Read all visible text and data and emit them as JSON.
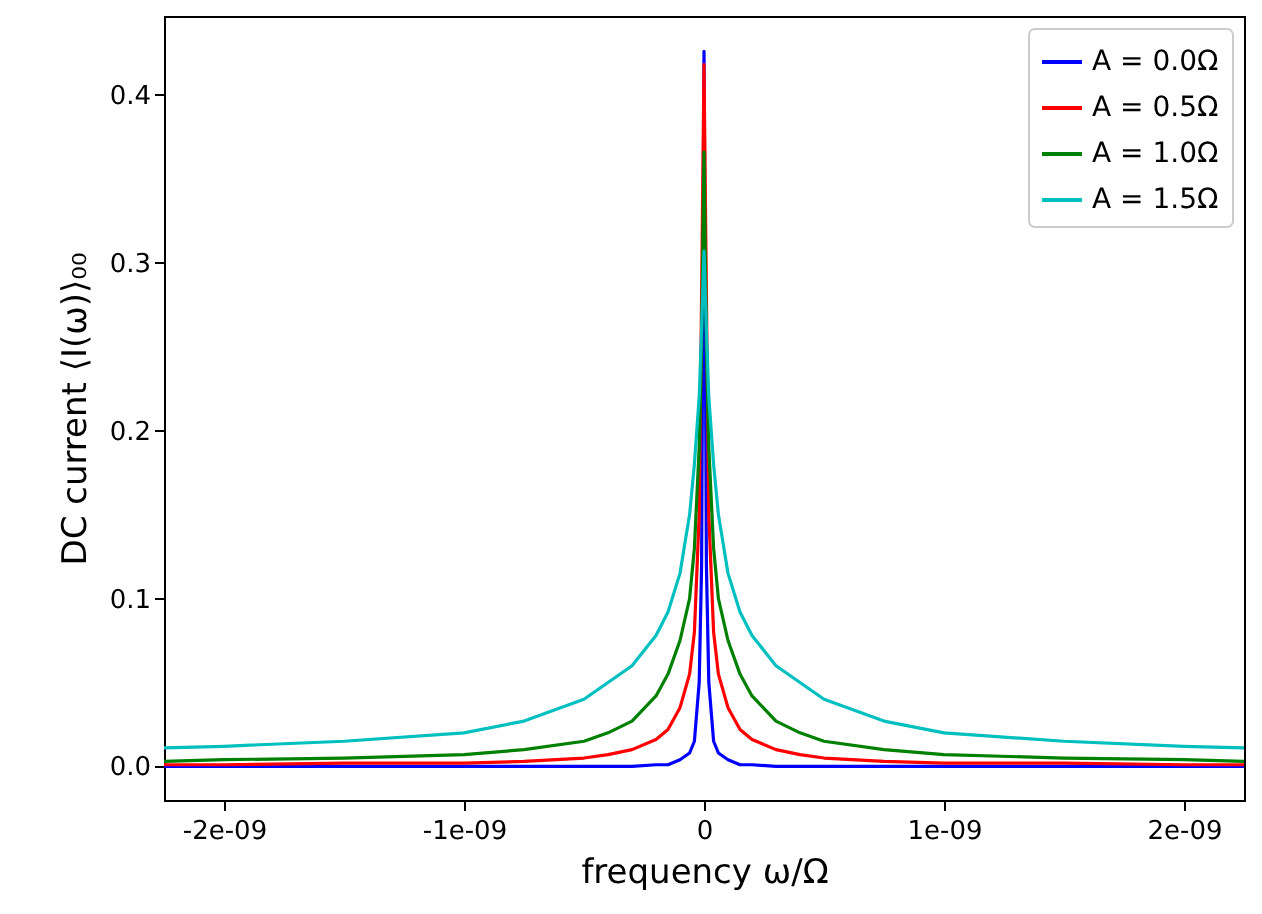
{
  "chart_data": {
    "type": "line",
    "xlabel": "frequency ω/Ω",
    "ylabel": "DC current ⟨I(ω)⟩₀₀",
    "x": [
      -2.25e-09,
      -2e-09,
      -1.5e-09,
      -1e-09,
      -7.5e-10,
      -5e-10,
      -4e-10,
      -3e-10,
      -2e-10,
      -1.5e-10,
      -1e-10,
      -6e-11,
      -4e-11,
      -2e-11,
      -1e-11,
      0,
      1e-11,
      2e-11,
      4e-11,
      6e-11,
      1e-10,
      1.5e-10,
      2e-10,
      3e-10,
      4e-10,
      5e-10,
      7.5e-10,
      1e-09,
      1.5e-09,
      2e-09,
      2.25e-09
    ],
    "series": [
      {
        "name": "A = 0.0Ω",
        "color": "#0000ff",
        "values": [
          0,
          0,
          0,
          0,
          0,
          0,
          0,
          0,
          0.001,
          0.001,
          0.004,
          0.008,
          0.015,
          0.05,
          0.12,
          0.426,
          0.12,
          0.05,
          0.015,
          0.008,
          0.004,
          0.001,
          0.001,
          0,
          0,
          0,
          0,
          0,
          0,
          0,
          0
        ]
      },
      {
        "name": "A = 0.5Ω",
        "color": "#ff0000",
        "values": [
          0.001,
          0.001,
          0.002,
          0.002,
          0.003,
          0.005,
          0.007,
          0.01,
          0.016,
          0.022,
          0.035,
          0.055,
          0.08,
          0.15,
          0.28,
          0.418,
          0.28,
          0.15,
          0.08,
          0.055,
          0.035,
          0.022,
          0.016,
          0.01,
          0.007,
          0.005,
          0.003,
          0.002,
          0.002,
          0.001,
          0.001
        ]
      },
      {
        "name": "A = 1.0Ω",
        "color": "#008000",
        "values": [
          0.003,
          0.004,
          0.005,
          0.007,
          0.01,
          0.015,
          0.02,
          0.027,
          0.042,
          0.055,
          0.075,
          0.1,
          0.13,
          0.19,
          0.25,
          0.366,
          0.25,
          0.19,
          0.13,
          0.1,
          0.075,
          0.055,
          0.042,
          0.027,
          0.02,
          0.015,
          0.01,
          0.007,
          0.005,
          0.004,
          0.003
        ]
      },
      {
        "name": "A = 1.5Ω",
        "color": "#00bfbf",
        "values": [
          0.011,
          0.012,
          0.015,
          0.02,
          0.027,
          0.04,
          0.05,
          0.06,
          0.078,
          0.092,
          0.115,
          0.15,
          0.18,
          0.22,
          0.26,
          0.307,
          0.26,
          0.22,
          0.18,
          0.15,
          0.115,
          0.092,
          0.078,
          0.06,
          0.05,
          0.04,
          0.027,
          0.02,
          0.015,
          0.012,
          0.011
        ]
      }
    ],
    "xlim": [
      -2.25e-09,
      2.25e-09
    ],
    "ylim": [
      -0.02,
      0.447
    ],
    "xticks": [
      {
        "value": -2e-09,
        "label": "-2e-09"
      },
      {
        "value": -1e-09,
        "label": "-1e-09"
      },
      0,
      {
        "value": 1e-09,
        "label": "1e-09"
      },
      {
        "value": 2e-09,
        "label": "2e-09"
      }
    ],
    "yticks": [
      {
        "value": 0,
        "label": "0.0"
      },
      {
        "value": 0.1,
        "label": "0.1"
      },
      {
        "value": 0.2,
        "label": "0.2"
      },
      {
        "value": 0.3,
        "label": "0.3"
      },
      {
        "value": 0.4,
        "label": "0.4"
      }
    ],
    "legend": "top right",
    "grid": false,
    "line_style": "solid"
  }
}
